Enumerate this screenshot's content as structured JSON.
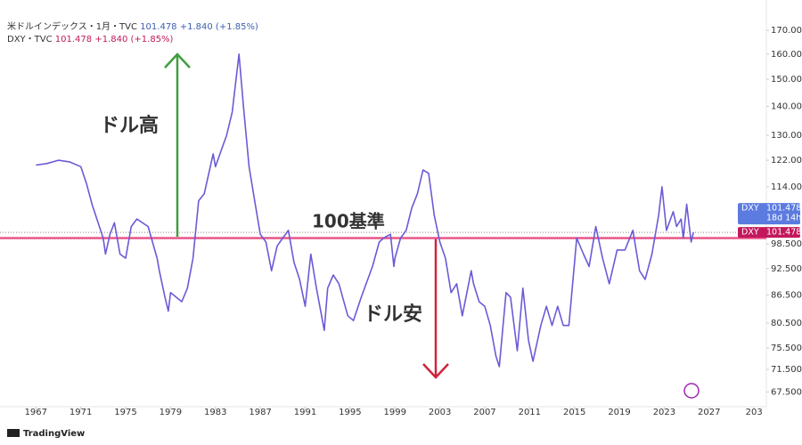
{
  "chart_data": {
    "type": "line",
    "legend": [
      {
        "label": "米ドルインデックス・1月・TVC",
        "value": 101.478,
        "change": "+1.840 (+1.85%)",
        "color": "#3d5fb0"
      },
      {
        "label": "DXY・TVC",
        "value": 101.478,
        "change": "+1.840 (+1.85%)",
        "color": "#c2185b"
      }
    ],
    "x": [
      1967,
      1968,
      1969,
      1970,
      1971,
      1971.5,
      1972,
      1973,
      1973.2,
      1973.6,
      1974,
      1974.5,
      1975,
      1975.5,
      1976,
      1977,
      1977.8,
      1978,
      1978.5,
      1978.8,
      1979,
      1980,
      1980.5,
      1981,
      1981.5,
      1982,
      1982.8,
      1983,
      1983.5,
      1984,
      1984.5,
      1985.1,
      1985.5,
      1986,
      1986.5,
      1987,
      1987.5,
      1988,
      1988.5,
      1989,
      1989.5,
      1990,
      1990.5,
      1991,
      1991.5,
      1992,
      1992.7,
      1993,
      1993.5,
      1994,
      1994.8,
      1995.3,
      1996,
      1997,
      1997.6,
      1998,
      1998.6,
      1998.9,
      1999,
      1999.5,
      2000,
      2000.5,
      2001,
      2001.5,
      2002,
      2002.5,
      2003,
      2003.5,
      2004,
      2004.5,
      2005,
      2005.8,
      2006,
      2006.5,
      2007,
      2007.5,
      2008,
      2008.3,
      2008.9,
      2009.3,
      2009.9,
      2010.4,
      2010.9,
      2011.3,
      2012,
      2012.5,
      2013,
      2013.5,
      2014,
      2014.5,
      2015.2,
      2015.8,
      2016.3,
      2016.9,
      2017.5,
      2018.1,
      2018.8,
      2019.5,
      2020.2,
      2020.8,
      2021.3,
      2021.9,
      2022.5,
      2022.8,
      2023.2,
      2023.8,
      2024.1,
      2024.5,
      2024.7,
      2025,
      2025.4,
      2025.6
    ],
    "series": [
      {
        "name": "DXY",
        "color": "#6a5bd6",
        "values": [
          120.5,
          121,
          122,
          121.5,
          120,
          115,
          109,
          100,
          96,
          101,
          104,
          96,
          95,
          103,
          105,
          103,
          95,
          92,
          86,
          83,
          87,
          85,
          88,
          95,
          110,
          112,
          124,
          120,
          125,
          130,
          138,
          160,
          140,
          120,
          110,
          101,
          99,
          92,
          98,
          100,
          102,
          94,
          90,
          84,
          96,
          88,
          79,
          88,
          91,
          89,
          82,
          81,
          86,
          93,
          99,
          100,
          101,
          93,
          95,
          100,
          102,
          108,
          112,
          119,
          118,
          106,
          99,
          95,
          87,
          89,
          82,
          92,
          89,
          85,
          84,
          80,
          74,
          72,
          87,
          86,
          75,
          88,
          77,
          73,
          80,
          84,
          80,
          84,
          80,
          80,
          100,
          96,
          93,
          103,
          95,
          89,
          97,
          97,
          102,
          92,
          90,
          96,
          106,
          114,
          102,
          107,
          103,
          105,
          100,
          109,
          99,
          101.478
        ]
      }
    ],
    "last_price": 101.478,
    "countdown": "18d 14h",
    "price_tag_colors": [
      "#5b7be0",
      "#c2185b"
    ],
    "hline": {
      "value": 100,
      "color": "#e8578a"
    },
    "annotations": [
      {
        "text": "ドル高",
        "color": "#3f8f3f"
      },
      {
        "text": "100基準",
        "color": "#c2185b"
      },
      {
        "text": "ドル安",
        "color": "#d0243a"
      }
    ],
    "log_scale": true,
    "grid": false,
    "xlim": [
      1963.8,
      2032.1
    ],
    "xticks": [
      1967,
      1971,
      1975,
      1979,
      1983,
      1987,
      1991,
      1995,
      1999,
      2003,
      2007,
      2011,
      2015,
      2019,
      2023,
      2027,
      {
        "value": 2031,
        "label": "203"
      }
    ],
    "ylim": [
      65,
      180
    ],
    "yticks": [
      {
        "value": 170,
        "label": "170.000"
      },
      {
        "value": 160,
        "label": "160.000"
      },
      {
        "value": 150,
        "label": "150.000"
      },
      {
        "value": 140,
        "label": "140.000"
      },
      {
        "value": 130,
        "label": "130.000"
      },
      {
        "value": 122,
        "label": "122.000"
      },
      {
        "value": 114,
        "label": "114.000"
      },
      {
        "value": 98.5,
        "label": "98.500"
      },
      {
        "value": 92.5,
        "label": "92.500"
      },
      {
        "value": 86.5,
        "label": "86.500"
      },
      {
        "value": 80.5,
        "label": "80.500"
      },
      {
        "value": 75.5,
        "label": "75.500"
      },
      {
        "value": 71.5,
        "label": "71.500"
      },
      {
        "value": 67.5,
        "label": "67.500"
      }
    ],
    "brand": "TradingView"
  }
}
